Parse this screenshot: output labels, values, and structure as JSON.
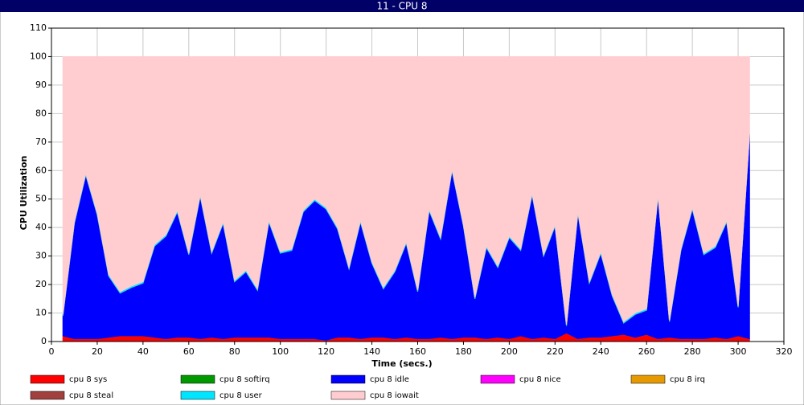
{
  "chart_data": {
    "type": "stacked-area",
    "title": "11 - CPU 8",
    "xlabel": "Time (secs.)",
    "ylabel": "CPU Utilization",
    "xlim": [
      0,
      320
    ],
    "xticks": [
      0,
      20,
      40,
      60,
      80,
      100,
      120,
      140,
      160,
      180,
      200,
      220,
      240,
      260,
      280,
      300,
      320
    ],
    "ylim": [
      0,
      110
    ],
    "yticks": [
      0,
      10,
      20,
      30,
      40,
      50,
      60,
      70,
      80,
      90,
      100,
      110
    ],
    "grid": true,
    "x": [
      5,
      10,
      15,
      20,
      25,
      30,
      35,
      40,
      45,
      50,
      55,
      60,
      65,
      70,
      75,
      80,
      85,
      90,
      95,
      100,
      105,
      110,
      115,
      120,
      125,
      130,
      135,
      140,
      145,
      150,
      155,
      160,
      165,
      170,
      175,
      180,
      185,
      190,
      195,
      200,
      205,
      210,
      215,
      220,
      225,
      230,
      235,
      240,
      245,
      250,
      255,
      260,
      265,
      270,
      275,
      280,
      285,
      290,
      295,
      300,
      305
    ],
    "series": [
      {
        "name": "cpu 8 sys",
        "color": "#ff0000",
        "values": [
          2,
          1,
          1,
          1,
          1.5,
          2,
          2,
          2,
          1.5,
          1,
          1.5,
          1.5,
          1,
          1.5,
          1,
          1.5,
          1.5,
          1.5,
          1.5,
          1,
          1,
          1,
          1,
          0.5,
          1.5,
          1.5,
          1,
          1.5,
          1.5,
          1,
          1.5,
          1,
          1,
          1.5,
          1,
          1.5,
          1.5,
          1,
          1.5,
          1,
          2,
          1,
          1.5,
          1,
          3,
          1,
          1.5,
          1.5,
          2,
          2.5,
          1.5,
          2.5,
          1,
          1.5,
          1,
          1,
          1,
          1.5,
          1,
          2,
          1
        ]
      },
      {
        "name": "cpu 8 softirq",
        "color": "#009900",
        "values": [
          0,
          0,
          0,
          0,
          0,
          0,
          0,
          0,
          0,
          0,
          0,
          0,
          0,
          0,
          0,
          0,
          0,
          0,
          0,
          0,
          0,
          0,
          0,
          0,
          0,
          0,
          0,
          0,
          0,
          0,
          0,
          0,
          0,
          0,
          0,
          0,
          0,
          0,
          0,
          0,
          0,
          0,
          0,
          0,
          0,
          0,
          0,
          0,
          0,
          0,
          0,
          0,
          0,
          0,
          0,
          0,
          0,
          0,
          0,
          0,
          0
        ]
      },
      {
        "name": "cpu 8 idle",
        "color": "#0000ff",
        "values": [
          7,
          40.5,
          57.5,
          43.5,
          21.5,
          15,
          17,
          18.5,
          32,
          36,
          44,
          29,
          50,
          29.5,
          40.5,
          19.5,
          23,
          16.5,
          40.5,
          30,
          31,
          44.5,
          48.5,
          46,
          38,
          24,
          41,
          26,
          17,
          23.5,
          33,
          16.5,
          45,
          34.5,
          59,
          39,
          13.5,
          32,
          24.5,
          35.5,
          30,
          50.5,
          28.5,
          39.5,
          2.5,
          44,
          19,
          29.5,
          14,
          4,
          8,
          8.5,
          50,
          5.5,
          31,
          45.5,
          29.5,
          31.5,
          41,
          10,
          71.5
        ]
      },
      {
        "name": "cpu 8 nice",
        "color": "#ff00ff",
        "values": [
          0,
          0,
          0,
          0,
          0,
          0,
          0,
          0,
          0,
          0,
          0,
          0,
          0,
          0,
          0,
          0,
          0,
          0,
          0,
          0,
          0,
          0,
          0,
          0,
          0,
          0,
          0,
          0,
          0,
          0,
          0,
          0,
          0,
          0,
          0,
          0,
          0,
          0,
          0,
          0,
          0,
          0,
          0,
          0,
          0,
          0,
          0,
          0,
          0,
          0,
          0,
          0,
          0,
          0,
          0,
          0,
          0,
          0,
          0,
          0,
          0
        ]
      },
      {
        "name": "cpu 8 irq",
        "color": "#e69900",
        "values": [
          0,
          0,
          0,
          0,
          0,
          0,
          0,
          0,
          0,
          0,
          0,
          0,
          0,
          0,
          0,
          0,
          0,
          0,
          0,
          0,
          0,
          0,
          0,
          0,
          0,
          0,
          0,
          0,
          0,
          0,
          0,
          0,
          0,
          0,
          0,
          0,
          0,
          0,
          0,
          0,
          0,
          0,
          0,
          0,
          0,
          0,
          0,
          0,
          0,
          0,
          0,
          0,
          0,
          0,
          0,
          0,
          0,
          0,
          0,
          0,
          0
        ]
      },
      {
        "name": "cpu 8 steal",
        "color": "#a0403f",
        "values": [
          0,
          0,
          0,
          0,
          0,
          0,
          0,
          0,
          0,
          0,
          0,
          0,
          0,
          0,
          0,
          0,
          0,
          0,
          0,
          0,
          0,
          0,
          0,
          0,
          0,
          0,
          0,
          0,
          0,
          0,
          0,
          0,
          0,
          0,
          0,
          0,
          0,
          0,
          0,
          0,
          0,
          0,
          0,
          0,
          0,
          0,
          0,
          0,
          0,
          0,
          0,
          0,
          0,
          0,
          0,
          0,
          0,
          0,
          0,
          0,
          0
        ]
      },
      {
        "name": "cpu 8 user",
        "color": "#00e5ff",
        "values": [
          0.5,
          0.5,
          0.5,
          0.5,
          0.5,
          0.5,
          0.5,
          0.5,
          0.5,
          0.5,
          0.5,
          0.5,
          0.5,
          0.5,
          0.5,
          0.5,
          0.5,
          0.5,
          0.5,
          0.5,
          0.5,
          0.5,
          0.5,
          0.5,
          0.5,
          0.5,
          0.5,
          0.5,
          0.5,
          0.5,
          0.5,
          0.5,
          0.5,
          0.5,
          0.5,
          0.5,
          0.5,
          0.5,
          0.5,
          0.5,
          0.5,
          0.5,
          0.5,
          0.5,
          0.5,
          0.5,
          0.5,
          0.5,
          0.5,
          0.5,
          0.5,
          0.5,
          0.5,
          0.5,
          0.5,
          0.5,
          0.5,
          0.5,
          0.5,
          0.5,
          0.5
        ]
      },
      {
        "name": "cpu 8 iowait",
        "color": "#ffccd0",
        "values": [
          90.5,
          58,
          41,
          55,
          76.5,
          82.5,
          80.5,
          79,
          66,
          62.5,
          54,
          69,
          48.5,
          68.5,
          58,
          78.5,
          75,
          81.5,
          57.5,
          68.5,
          67.5,
          54,
          50,
          53,
          60,
          74,
          57.5,
          72,
          81,
          75,
          65,
          82,
          53.5,
          63.5,
          39.5,
          59,
          84.5,
          66.5,
          73.5,
          63,
          67.5,
          48,
          69.5,
          59,
          94,
          54.5,
          79,
          68.5,
          83.5,
          93,
          90,
          88.5,
          48.5,
          92.5,
          67.5,
          53,
          69,
          66.5,
          57.5,
          87.5,
          27
        ]
      }
    ]
  }
}
